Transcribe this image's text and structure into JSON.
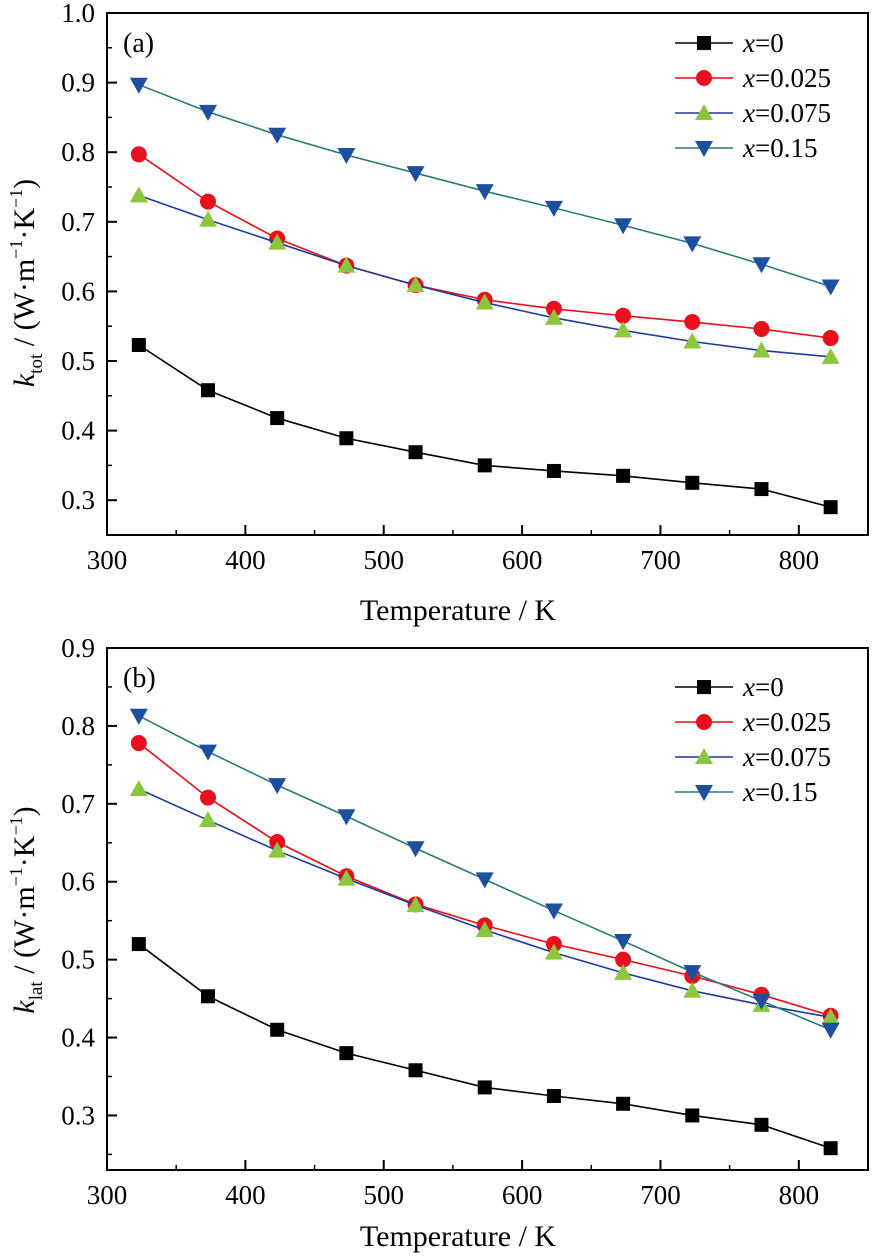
{
  "chart_data": [
    {
      "type": "line",
      "panel_label": "(a)",
      "xlabel": "Temperature / K",
      "ylabel_symbol": "k",
      "ylabel_subscript": "tot",
      "ylabel_unit_open": " / (W·m",
      "ylabel_exp1": "−1",
      "ylabel_unit_mid": "·K",
      "ylabel_exp2": "−1",
      "ylabel_unit_close": ")",
      "xlim": [
        300,
        850
      ],
      "ylim": [
        0.25,
        1.0
      ],
      "xticks": [
        300,
        400,
        500,
        600,
        700,
        800
      ],
      "yticks": [
        0.3,
        0.4,
        0.5,
        0.6,
        0.7,
        0.8,
        0.9,
        1.0
      ],
      "ytick_labels": [
        "0.3",
        "0.4",
        "0.5",
        "0.6",
        "0.7",
        "0.8",
        "0.9",
        "1.0"
      ],
      "legend_position": "top-right",
      "x": [
        323,
        373,
        423,
        473,
        523,
        573,
        623,
        673,
        723,
        773,
        823
      ],
      "series": [
        {
          "name_var": "x",
          "name_val": "=0",
          "color": "#000000",
          "marker": "square",
          "values": [
            0.523,
            0.458,
            0.418,
            0.389,
            0.369,
            0.35,
            0.342,
            0.335,
            0.325,
            0.316,
            0.29
          ]
        },
        {
          "name_var": "x",
          "name_val": "=0.025",
          "color": "#e8101c",
          "marker": "circle",
          "values": [
            0.797,
            0.729,
            0.676,
            0.637,
            0.609,
            0.588,
            0.575,
            0.565,
            0.556,
            0.546,
            0.533
          ]
        },
        {
          "name_var": "x",
          "name_val": "=0.075",
          "color": "#1d3a9e",
          "marker": "triangle-up",
          "marker_color": "#8cc63f",
          "values": [
            0.738,
            0.703,
            0.67,
            0.637,
            0.609,
            0.584,
            0.562,
            0.544,
            0.528,
            0.515,
            0.506
          ]
        },
        {
          "name_var": "x",
          "name_val": "=0.15",
          "color": "#2a7a78",
          "marker": "triangle-down",
          "marker_color": "#1c4fa0",
          "values": [
            0.897,
            0.858,
            0.825,
            0.796,
            0.77,
            0.744,
            0.72,
            0.695,
            0.669,
            0.639,
            0.607
          ]
        }
      ]
    },
    {
      "type": "line",
      "panel_label": "(b)",
      "xlabel": "Temperature / K",
      "ylabel_symbol": "k",
      "ylabel_subscript": "lat",
      "ylabel_unit_open": " / (W·m",
      "ylabel_exp1": "−1",
      "ylabel_unit_mid": "·K",
      "ylabel_exp2": "−1",
      "ylabel_unit_close": ")",
      "xlim": [
        300,
        850
      ],
      "ylim": [
        0.23,
        0.9
      ],
      "xticks": [
        300,
        400,
        500,
        600,
        700,
        800
      ],
      "yticks": [
        0.3,
        0.4,
        0.5,
        0.6,
        0.7,
        0.8,
        0.9
      ],
      "ytick_labels": [
        "0.3",
        "0.4",
        "0.5",
        "0.6",
        "0.7",
        "0.8",
        "0.9"
      ],
      "legend_position": "top-right",
      "x": [
        323,
        373,
        423,
        473,
        523,
        573,
        623,
        673,
        723,
        773,
        823
      ],
      "series": [
        {
          "name_var": "x",
          "name_val": "=0",
          "color": "#000000",
          "marker": "square",
          "values": [
            0.52,
            0.453,
            0.41,
            0.38,
            0.358,
            0.336,
            0.325,
            0.315,
            0.3,
            0.288,
            0.258
          ]
        },
        {
          "name_var": "x",
          "name_val": "=0.025",
          "color": "#e8101c",
          "marker": "circle",
          "values": [
            0.778,
            0.708,
            0.651,
            0.607,
            0.571,
            0.544,
            0.52,
            0.5,
            0.479,
            0.455,
            0.428
          ]
        },
        {
          "name_var": "x",
          "name_val": "=0.075",
          "color": "#1d3a9e",
          "marker": "triangle-up",
          "marker_color": "#8cc63f",
          "values": [
            0.719,
            0.679,
            0.64,
            0.604,
            0.57,
            0.538,
            0.509,
            0.483,
            0.46,
            0.442,
            0.426
          ]
        },
        {
          "name_var": "x",
          "name_val": "=0.15",
          "color": "#2a7a78",
          "marker": "triangle-down",
          "marker_color": "#1c4fa0",
          "values": [
            0.813,
            0.767,
            0.724,
            0.684,
            0.643,
            0.603,
            0.563,
            0.524,
            0.484,
            0.447,
            0.41
          ]
        }
      ]
    }
  ]
}
